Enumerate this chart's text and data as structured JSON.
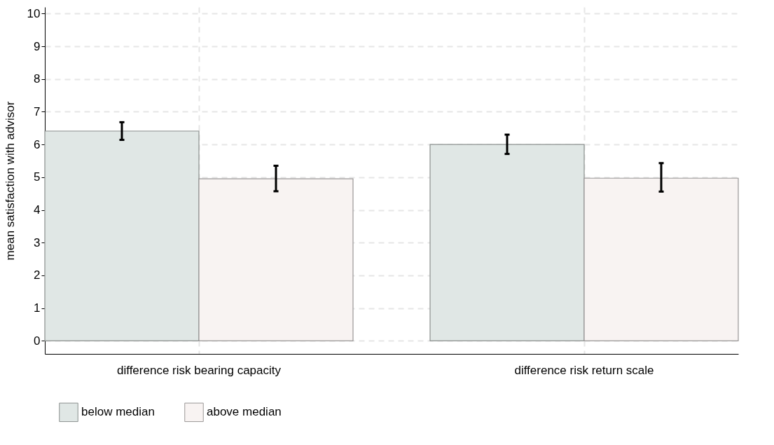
{
  "chart_data": {
    "type": "bar",
    "ylabel": "mean satisfaction with advisor",
    "categories": [
      "difference risk bearing capacity",
      "difference risk return scale"
    ],
    "series": [
      {
        "name": "below median",
        "color": "#e0e7e5",
        "values": [
          6.41,
          6.0
        ],
        "errors": [
          [
            6.14,
            6.68
          ],
          [
            5.71,
            6.3
          ]
        ]
      },
      {
        "name": "above median",
        "color": "#f8f3f2",
        "values": [
          4.95,
          4.97
        ],
        "errors": [
          [
            4.57,
            5.35
          ],
          [
            4.56,
            5.43
          ]
        ]
      }
    ],
    "ylim": [
      -0.4,
      10.2
    ],
    "yticks": [
      0,
      1,
      2,
      3,
      4,
      5,
      6,
      7,
      8,
      9,
      10
    ],
    "grid": true,
    "legend": "bottom"
  }
}
